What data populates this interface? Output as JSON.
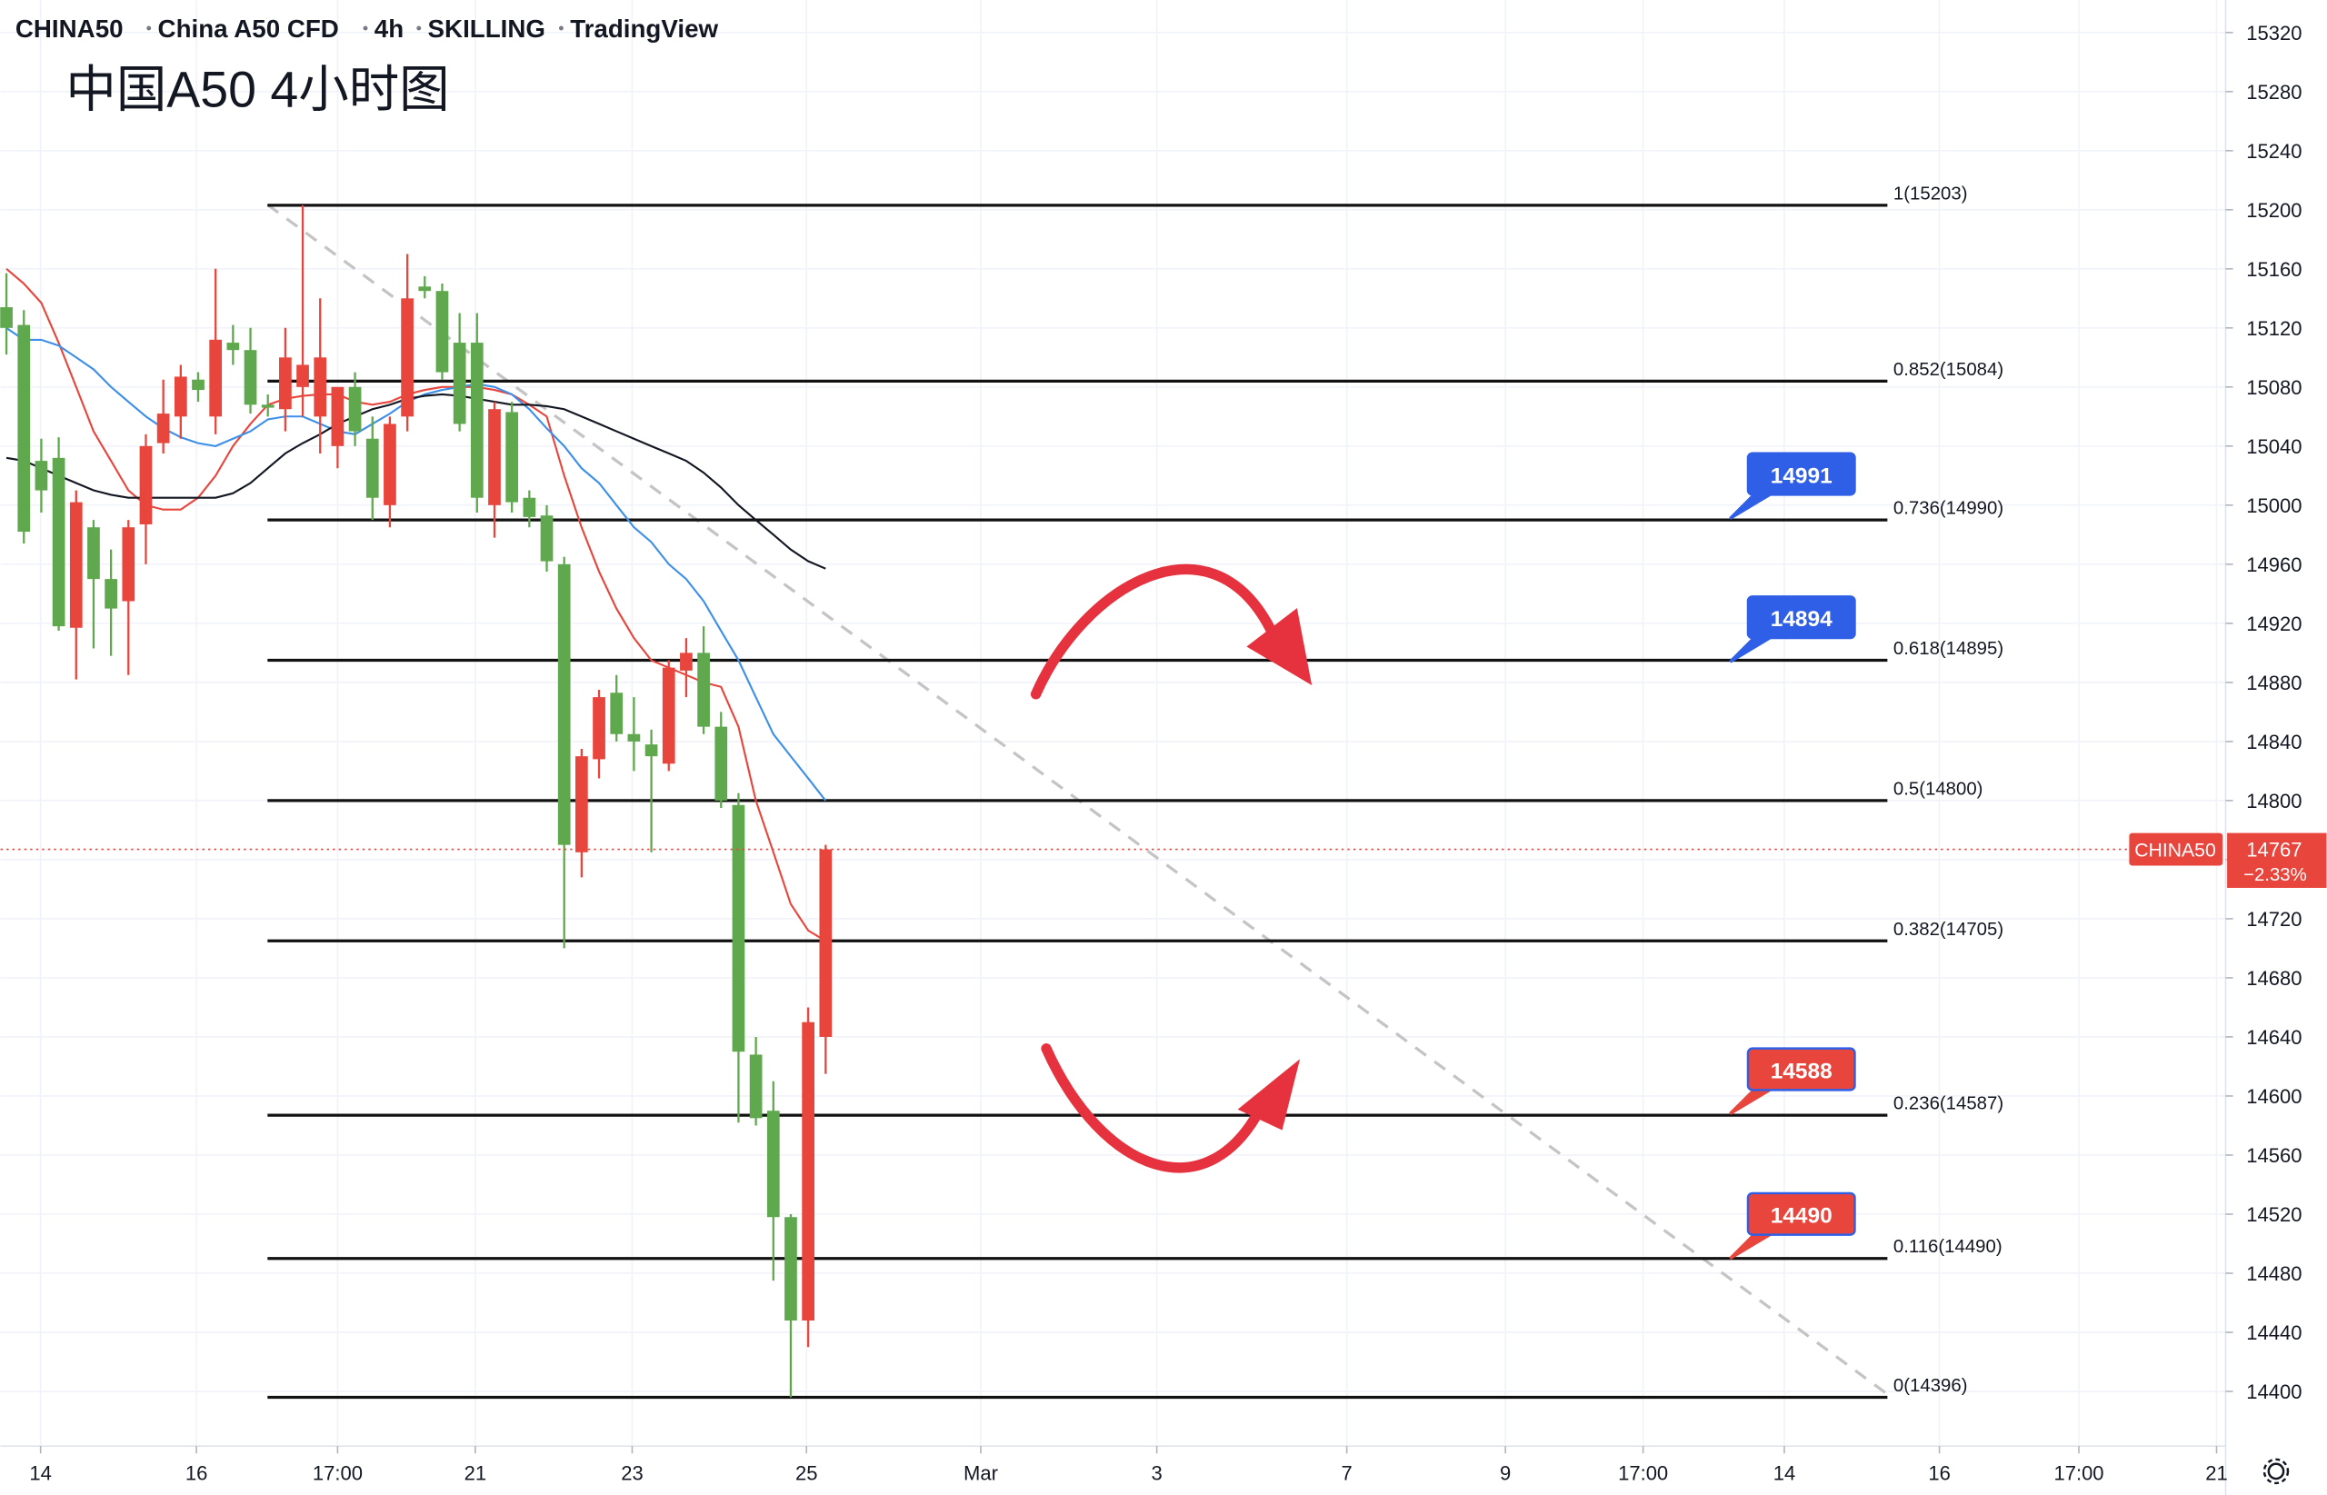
{
  "chart_data": {
    "type": "candlestick",
    "symbol_info": [
      "CHINA50",
      "China A50 CFD",
      "4h",
      "SKILLING",
      "TradingView"
    ],
    "title": "中国A50 4小时图",
    "xlim": [
      -0.34,
      127.32
    ],
    "xticks": [
      {
        "value": 1.96,
        "label": "14"
      },
      {
        "value": 10.9,
        "label": "16"
      },
      {
        "value": 19,
        "label": "17:00"
      },
      {
        "value": 26.9,
        "label": "21"
      },
      {
        "value": 35.9,
        "label": "23"
      },
      {
        "value": 45.9,
        "label": "25"
      },
      {
        "value": 55.9,
        "label": "Mar"
      },
      {
        "value": 66,
        "label": "3"
      },
      {
        "value": 76.9,
        "label": "7"
      },
      {
        "value": 86,
        "label": "9"
      },
      {
        "value": 93.9,
        "label": "17:00"
      },
      {
        "value": 102,
        "label": "14"
      },
      {
        "value": 110.9,
        "label": "16"
      },
      {
        "value": 118.9,
        "label": "17:00"
      },
      {
        "value": 126.8,
        "label": "21"
      }
    ],
    "ylim": [
      14363,
      15342
    ],
    "yticks": [
      14400,
      14440,
      14480,
      14520,
      14560,
      14600,
      14640,
      14680,
      14720,
      14760,
      14800,
      14840,
      14880,
      14920,
      14960,
      15000,
      15040,
      15080,
      15120,
      15160,
      15200,
      15240,
      15280,
      15320
    ],
    "grid": true,
    "up_color": "#e8453c",
    "down_color": "#5fa84d",
    "open": [
      15134,
      15122,
      15030,
      15032,
      14917,
      14985,
      14950,
      14935,
      14987,
      15042,
      15060,
      15085,
      15060,
      15110,
      15105,
      15068,
      15065,
      15080,
      15060,
      15040,
      15080,
      15045,
      15000,
      15060,
      15148,
      15145,
      15110,
      15110,
      15000,
      15063,
      15005,
      14993,
      14960,
      14765,
      14828,
      14873,
      14845,
      14838,
      14825,
      14888,
      14900,
      14850,
      14797,
      14628,
      14590,
      14518,
      14448,
      14640
    ],
    "high": [
      15157,
      15132,
      15045,
      15046,
      15010,
      14990,
      14970,
      14990,
      15048,
      15085,
      15095,
      15090,
      15160,
      15122,
      15120,
      15075,
      15120,
      15203,
      15140,
      15080,
      15090,
      15060,
      15060,
      15170,
      15155,
      15150,
      15130,
      15130,
      15070,
      15070,
      15010,
      15000,
      14965,
      14835,
      14875,
      14885,
      14870,
      14848,
      14895,
      14910,
      14918,
      14860,
      14805,
      14640,
      14610,
      14520,
      14660,
      14770
    ],
    "low": [
      15102,
      14974,
      14995,
      14915,
      14882,
      14903,
      14898,
      14885,
      14960,
      15035,
      15045,
      15070,
      15048,
      15095,
      15062,
      15060,
      15050,
      15060,
      15035,
      15025,
      15040,
      14990,
      14985,
      15050,
      15140,
      15085,
      15050,
      14995,
      14978,
      14995,
      14985,
      14955,
      14700,
      14748,
      14815,
      14840,
      14820,
      14765,
      14820,
      14870,
      14845,
      14795,
      14582,
      14580,
      14475,
      14396,
      14430,
      14615
    ],
    "close": [
      15120,
      14982,
      15010,
      14918,
      15002,
      14950,
      14930,
      14985,
      15040,
      15062,
      15087,
      15078,
      15112,
      15105,
      15068,
      15066,
      15100,
      15095,
      15100,
      15080,
      15050,
      15005,
      15055,
      15140,
      15145,
      15090,
      15055,
      15005,
      15065,
      15002,
      14992,
      14962,
      14770,
      14830,
      14870,
      14845,
      14840,
      14830,
      14890,
      14900,
      14850,
      14800,
      14630,
      14585,
      14518,
      14448,
      14650,
      14767
    ],
    "series": [
      {
        "color": "#e8453c",
        "values": [
          15160,
          15150,
          15137,
          15110,
          15080,
          15050,
          15030,
          15010,
          15000,
          14997,
          14997,
          15005,
          15020,
          15040,
          15055,
          15068,
          15072,
          15074,
          15075,
          15075,
          15070,
          15068,
          15070,
          15075,
          15078,
          15080,
          15080,
          15080,
          15078,
          15075,
          15068,
          15060,
          15020,
          14985,
          14955,
          14930,
          14910,
          14895,
          14890,
          14885,
          14880,
          14877,
          14850,
          14800,
          14765,
          14730,
          14712,
          14705
        ]
      },
      {
        "color": "#3d8fe8",
        "values": [
          15120,
          15112,
          15112,
          15108,
          15100,
          15092,
          15080,
          15070,
          15060,
          15052,
          15046,
          15042,
          15040,
          15045,
          15050,
          15058,
          15060,
          15060,
          15055,
          15050,
          15048,
          15055,
          15062,
          15070,
          15075,
          15078,
          15080,
          15082,
          15080,
          15075,
          15065,
          15052,
          15040,
          15025,
          15015,
          15000,
          14985,
          14975,
          14960,
          14950,
          14935,
          14915,
          14895,
          14870,
          14845,
          14830,
          14815,
          14800
        ]
      },
      {
        "color": "#131722",
        "values": [
          15032,
          15030,
          15025,
          15020,
          15015,
          15010,
          15007,
          15005,
          15005,
          15005,
          15005,
          15005,
          15005,
          15008,
          15015,
          15025,
          15035,
          15042,
          15048,
          15055,
          15060,
          15065,
          15068,
          15072,
          15074,
          15075,
          15074,
          15072,
          15070,
          15068,
          15068,
          15067,
          15065,
          15060,
          15055,
          15050,
          15045,
          15040,
          15035,
          15030,
          15022,
          15012,
          15000,
          14990,
          14980,
          14970,
          14962,
          14957
        ]
      }
    ],
    "fib_levels": [
      {
        "value": 15203,
        "label": "1(15203)"
      },
      {
        "value": 15084,
        "label": "0.852(15084)"
      },
      {
        "value": 14990,
        "label": "0.736(14990)"
      },
      {
        "value": 14895,
        "label": "0.618(14895)"
      },
      {
        "value": 14800,
        "label": "0.5(14800)"
      },
      {
        "value": 14705,
        "label": "0.382(14705)"
      },
      {
        "value": 14587,
        "label": "0.236(14587)"
      },
      {
        "value": 14490,
        "label": "0.116(14490)"
      },
      {
        "value": 14396,
        "label": "0(14396)"
      }
    ],
    "price_callouts": [
      {
        "value": 14991,
        "color": "#2f5fe6"
      },
      {
        "value": 14894,
        "color": "#2f5fe6"
      },
      {
        "value": 14588,
        "color": "#e8453c"
      },
      {
        "value": 14490,
        "color": "#e8453c"
      }
    ],
    "last_price": 14767,
    "last_symbol": "CHINA50",
    "last_change": "−2.33%"
  }
}
